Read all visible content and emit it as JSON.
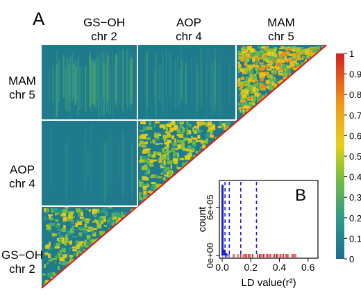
{
  "panel_a_letter": "A",
  "panel_b_letter": "B",
  "top_labels": [
    {
      "line1": "GS−OH",
      "line2": "chr 2"
    },
    {
      "line1": "AOP",
      "line2": "chr 4"
    },
    {
      "line1": "MAM",
      "line2": "chr 5"
    }
  ],
  "left_labels": [
    {
      "line1": "MAM",
      "line2": "chr 5"
    },
    {
      "line1": "AOP",
      "line2": "chr 4"
    },
    {
      "line1": "GS−OH",
      "line2": "chr 2"
    }
  ],
  "colors": {
    "background_teal": "#1f7a8c",
    "low": "#1a6f8d",
    "mid": "#f0d000",
    "high": "#d62020",
    "divider": "#ffffff",
    "inset_lines": "#1a1adb",
    "inset_rug": "#e02020"
  },
  "chart_data": [
    {
      "type": "heatmap",
      "description_of_blocks": [
        "GS−OH chr 2",
        "AOP chr 4",
        "MAM chr 5"
      ],
      "colorbar": {
        "min": 0,
        "max": 1,
        "ticks": [
          "1",
          "0.9",
          "0.8",
          "0.7",
          "0.6",
          "0.5",
          "0.4",
          "0.3",
          "0.2",
          "0.1",
          "0"
        ],
        "stops": [
          "#1a6f8d",
          "#2f9a8a",
          "#7cbf3b",
          "#e6cf1a",
          "#f09a1a",
          "#d62020"
        ]
      }
    },
    {
      "type": "histogram",
      "xlabel": "LD value(r²)",
      "ylabel": "count",
      "xlim": [
        0,
        0.65
      ],
      "ylim": [
        0,
        900000
      ],
      "x_ticks": [
        "0.0",
        "0.2",
        "0.4",
        "0.6"
      ],
      "y_ticks": [
        "0e+00",
        "6e+05"
      ],
      "dashed_vlines": [
        0.02,
        0.05,
        0.13,
        0.24
      ],
      "rug_range": [
        0.0,
        0.52
      ]
    }
  ]
}
